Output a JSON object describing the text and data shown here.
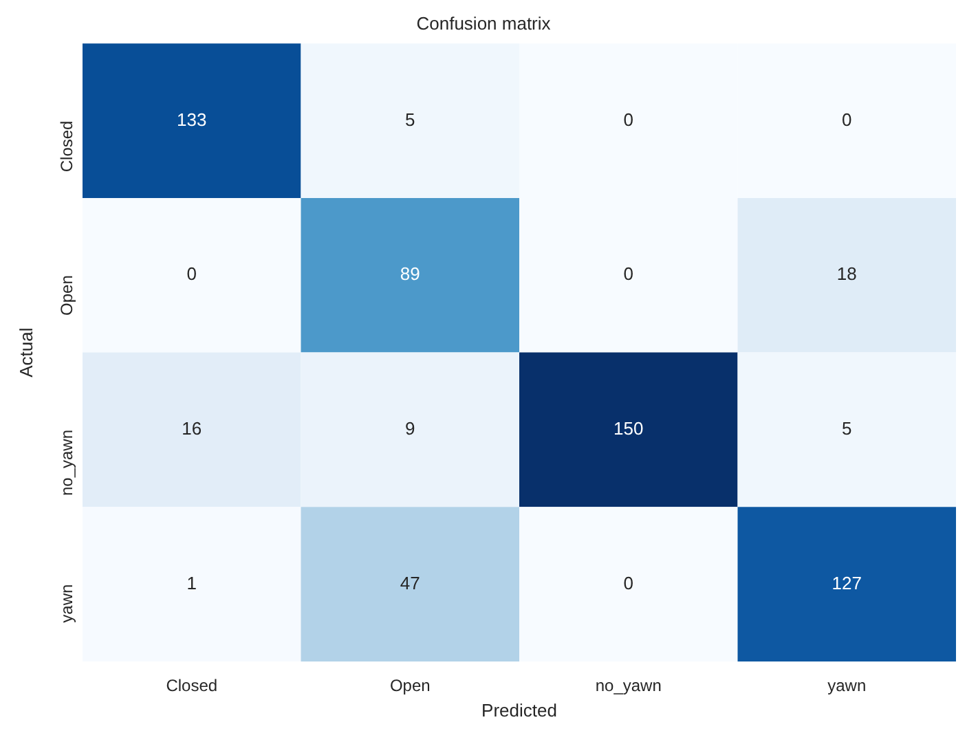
{
  "chart_data": {
    "type": "heatmap",
    "title": "Confusion matrix",
    "xlabel": "Predicted",
    "ylabel": "Actual",
    "categories": [
      "Closed",
      "Open",
      "no_yawn",
      "yawn"
    ],
    "y_categories": [
      "Closed",
      "Open",
      "no_yawn",
      "yawn"
    ],
    "cells": [
      [
        133,
        5,
        0,
        0
      ],
      [
        0,
        89,
        0,
        18
      ],
      [
        16,
        9,
        150,
        5
      ],
      [
        1,
        47,
        0,
        127
      ]
    ],
    "data_labels": true
  }
}
